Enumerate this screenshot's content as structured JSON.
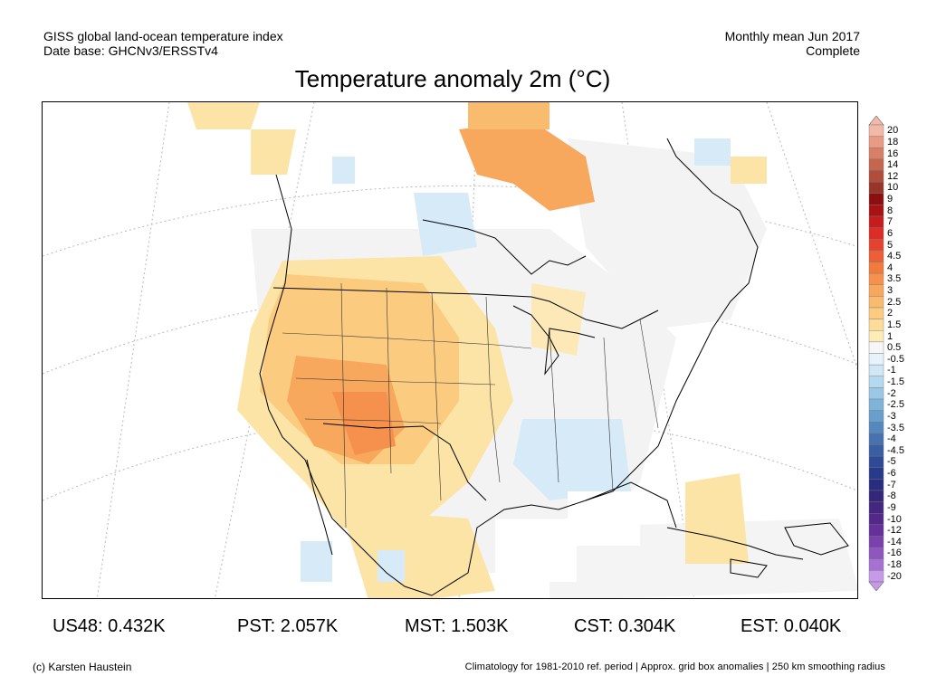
{
  "header": {
    "line1_left": "GISS global land-ocean temperature index",
    "line2_left": "Date base: GHCNv3/ERSSTv4",
    "line1_right": "Monthly mean Jun 2017",
    "line2_right": "Complete"
  },
  "title": "Temperature anomaly 2m (°C)",
  "legend": {
    "labels": [
      "20",
      "18",
      "16",
      "14",
      "12",
      "10",
      "9",
      "8",
      "7",
      "6",
      "5",
      "4.5",
      "4",
      "3.5",
      "3",
      "2.5",
      "2",
      "1.5",
      "1",
      "0.5",
      "-0.5",
      "-1",
      "-1.5",
      "-2",
      "-2.5",
      "-3",
      "-3.5",
      "-4",
      "-4.5",
      "-5",
      "-6",
      "-7",
      "-8",
      "-9",
      "-10",
      "-12",
      "-14",
      "-16",
      "-18",
      "-20"
    ],
    "colors": [
      "#f2b8a8",
      "#e89a82",
      "#d97e67",
      "#c5664f",
      "#b04d3b",
      "#973529",
      "#8b0f0f",
      "#a81212",
      "#c61c1c",
      "#db2c25",
      "#e5432d",
      "#ec5e35",
      "#f17a3d",
      "#f5914c",
      "#f8a85d",
      "#f9bb6d",
      "#fbcc80",
      "#fcdc98",
      "#fdecb5",
      "#f6f6f6",
      "#e6f3fc",
      "#cfe7f7",
      "#b4d9f0",
      "#9ac8e6",
      "#7fb4d9",
      "#689fcb",
      "#5589bd",
      "#4673af",
      "#395ea2",
      "#2f4b96",
      "#283b8a",
      "#292d80",
      "#342679",
      "#44257f",
      "#54288b",
      "#653099",
      "#7a40ad",
      "#9056c0",
      "#a771d3",
      "#c69ae8"
    ]
  },
  "stats": [
    {
      "label": "US48: 0.432K"
    },
    {
      "label": "PST: 2.057K"
    },
    {
      "label": "MST: 1.503K"
    },
    {
      "label": "CST: 0.304K"
    },
    {
      "label": "EST: 0.040K"
    }
  ],
  "footer": {
    "left": "(c) Karsten Haustein",
    "right": "Climatology for 1981-2010 ref. period | Approx. grid box anomalies | 250 km smoothing radius"
  }
}
